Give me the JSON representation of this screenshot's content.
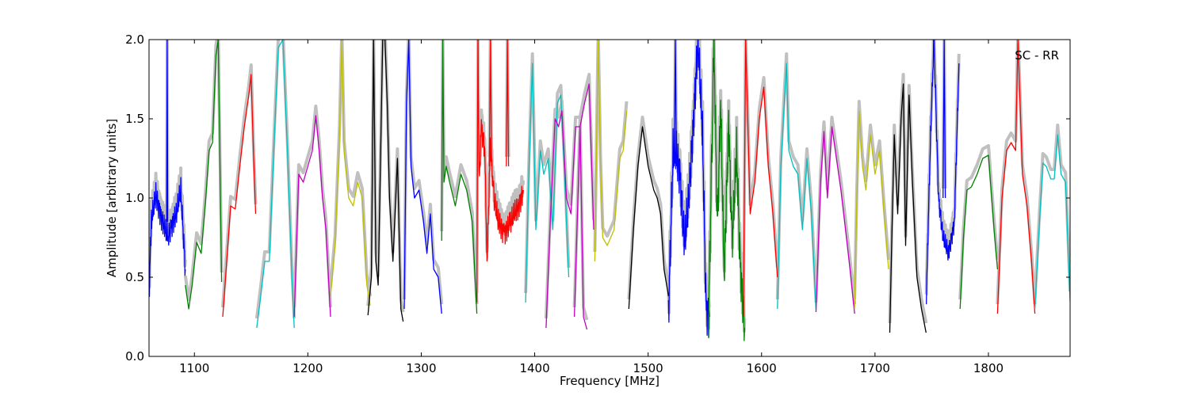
{
  "chart_data": {
    "type": "line",
    "title": "",
    "xlabel": "Frequency [MHz]",
    "ylabel": "Amplitude [arbitrary units]",
    "annotation": "SC - RR",
    "annotation_position": "top-right",
    "xlim": [
      1060,
      1872
    ],
    "ylim": [
      0.0,
      2.0
    ],
    "xticks": [
      1100,
      1200,
      1300,
      1400,
      1500,
      1600,
      1700,
      1800
    ],
    "yticks": [
      0.0,
      0.5,
      1.0,
      1.5,
      2.0
    ],
    "xtick_labels": [
      "1100",
      "1200",
      "1300",
      "1400",
      "1500",
      "1600",
      "1700",
      "1800"
    ],
    "ytick_labels": [
      "0.0",
      "0.5",
      "1.0",
      "1.5",
      "2.0"
    ],
    "grid": false,
    "background_color": "#c0c0c0",
    "colors": {
      "b": "#0000ff",
      "g": "#008000",
      "r": "#ff0000",
      "c": "#00bfbf",
      "m": "#bf00bf",
      "y": "#bfbf00",
      "k": "#000000"
    },
    "segments": [
      {
        "color": "b",
        "x": [
          1060,
          1062,
          1066,
          1070,
          1074,
          1077,
          1080,
          1084,
          1088,
          1092
        ],
        "y": [
          0.38,
          0.85,
          1.02,
          0.9,
          0.8,
          0.75,
          0.83,
          0.9,
          1.05,
          0.55
        ],
        "noise": 0.08
      },
      {
        "color": "b",
        "x": [
          1075.5,
          1076,
          1076.5
        ],
        "y": [
          0.85,
          2.0,
          0.85
        ]
      },
      {
        "color": "g",
        "x": [
          1092,
          1095,
          1098,
          1102,
          1106,
          1110,
          1113,
          1116,
          1119,
          1121,
          1124
        ],
        "y": [
          0.45,
          0.3,
          0.45,
          0.72,
          0.65,
          1.0,
          1.3,
          1.35,
          1.9,
          2.0,
          0.47
        ]
      },
      {
        "color": "r",
        "x": [
          1125,
          1128,
          1132,
          1136,
          1140,
          1144,
          1148,
          1150,
          1152,
          1154
        ],
        "y": [
          0.25,
          0.55,
          0.95,
          0.93,
          1.2,
          1.45,
          1.65,
          1.78,
          1.3,
          0.9
        ]
      },
      {
        "color": "c",
        "x": [
          1155,
          1158,
          1162,
          1166,
          1170,
          1174,
          1178,
          1182,
          1186,
          1188
        ],
        "y": [
          0.18,
          0.35,
          0.6,
          0.6,
          1.3,
          1.95,
          2.0,
          1.3,
          0.5,
          0.18
        ]
      },
      {
        "color": "m",
        "x": [
          1188,
          1192,
          1196,
          1200,
          1204,
          1207,
          1210,
          1213,
          1216,
          1220
        ],
        "y": [
          0.25,
          1.15,
          1.1,
          1.2,
          1.3,
          1.52,
          1.3,
          1.0,
          0.8,
          0.25
        ]
      },
      {
        "color": "y",
        "x": [
          1220,
          1224,
          1228,
          1230,
          1232,
          1236,
          1240,
          1244,
          1248,
          1252,
          1255
        ],
        "y": [
          0.38,
          0.7,
          1.4,
          2.0,
          1.3,
          1.0,
          0.95,
          1.1,
          1.0,
          0.45,
          0.32
        ]
      },
      {
        "color": "k",
        "x": [
          1253,
          1256,
          1258,
          1260,
          1262,
          1264,
          1266,
          1268,
          1270,
          1272,
          1275,
          1279,
          1282,
          1284
        ],
        "y": [
          0.26,
          0.5,
          2.0,
          0.6,
          0.45,
          1.2,
          2.0,
          2.0,
          1.6,
          1.0,
          0.6,
          1.25,
          0.3,
          0.22
        ]
      },
      {
        "color": "b",
        "x": [
          1285,
          1287,
          1289,
          1291,
          1294,
          1298,
          1302,
          1305,
          1308,
          1311,
          1315,
          1318
        ],
        "y": [
          0.3,
          1.6,
          2.0,
          1.2,
          1.0,
          1.05,
          0.85,
          0.65,
          0.9,
          0.55,
          0.5,
          0.27
        ]
      },
      {
        "color": "g",
        "x": [
          1318,
          1319,
          1320,
          1322,
          1325,
          1330,
          1335,
          1340,
          1345,
          1349
        ],
        "y": [
          0.73,
          2.0,
          1.1,
          1.2,
          1.1,
          0.95,
          1.15,
          1.05,
          0.85,
          0.27
        ]
      },
      {
        "color": "r",
        "x": [
          1349,
          1350,
          1351,
          1353,
          1356,
          1358,
          1361,
          1364,
          1368,
          1373,
          1378,
          1382,
          1386,
          1390
        ],
        "y": [
          0.3,
          2.0,
          1.1,
          1.45,
          1.3,
          0.6,
          1.35,
          1.0,
          0.85,
          0.78,
          0.83,
          0.9,
          0.95,
          1.05
        ],
        "noise": 0.08
      },
      {
        "color": "r",
        "x": [
          1360,
          1361,
          1362
        ],
        "y": [
          1.2,
          2.0,
          1.2
        ]
      },
      {
        "color": "r",
        "x": [
          1375,
          1376,
          1377
        ],
        "y": [
          1.2,
          2.0,
          1.2
        ]
      },
      {
        "color": "c",
        "x": [
          1392,
          1395,
          1398,
          1401,
          1405,
          1408,
          1412,
          1416,
          1420,
          1423,
          1426,
          1430
        ],
        "y": [
          0.34,
          1.2,
          1.85,
          0.8,
          1.3,
          1.15,
          1.25,
          0.8,
          1.6,
          1.65,
          1.2,
          0.5
        ]
      },
      {
        "color": "m",
        "x": [
          1410,
          1414,
          1418,
          1421,
          1424,
          1428,
          1432,
          1436,
          1440,
          1443,
          1446
        ],
        "y": [
          0.18,
          0.9,
          1.5,
          1.45,
          1.55,
          1.0,
          0.9,
          1.45,
          1.45,
          0.25,
          0.17
        ]
      },
      {
        "color": "m",
        "x": [
          1435,
          1440,
          1444,
          1448,
          1452
        ],
        "y": [
          0.25,
          1.45,
          1.6,
          1.72,
          0.8
        ]
      },
      {
        "color": "y",
        "x": [
          1453,
          1456,
          1458,
          1460,
          1464,
          1470,
          1475,
          1478,
          1481
        ],
        "y": [
          0.6,
          2.0,
          1.2,
          0.75,
          0.7,
          0.8,
          1.25,
          1.3,
          1.55
        ]
      },
      {
        "color": "k",
        "x": [
          1483,
          1487,
          1491,
          1495,
          1500,
          1505,
          1508,
          1511,
          1514,
          1518
        ],
        "y": [
          0.3,
          0.8,
          1.2,
          1.45,
          1.2,
          1.05,
          1.0,
          0.9,
          0.55,
          0.38
        ]
      },
      {
        "color": "b",
        "x": [
          1518,
          1522,
          1525,
          1528,
          1532,
          1536,
          1540,
          1544,
          1548,
          1551,
          1554
        ],
        "y": [
          0.28,
          1.3,
          1.28,
          1.15,
          0.7,
          1.0,
          1.5,
          2.0,
          1.4,
          0.3,
          0.25
        ],
        "noise": 0.15
      },
      {
        "color": "b",
        "x": [
          1523,
          1524,
          1525
        ],
        "y": [
          1.2,
          2.0,
          1.2
        ]
      },
      {
        "color": "g",
        "x": [
          1553,
          1556,
          1558,
          1561,
          1564,
          1567,
          1571,
          1574,
          1578,
          1581,
          1585
        ],
        "y": [
          0.15,
          1.2,
          2.0,
          0.8,
          1.6,
          0.5,
          1.5,
          0.7,
          1.3,
          0.6,
          0.18
        ],
        "noise": 0.15
      },
      {
        "color": "r",
        "x": [
          1584,
          1586,
          1590,
          1594,
          1598,
          1602,
          1606,
          1610,
          1614
        ],
        "y": [
          0.25,
          2.0,
          0.9,
          1.1,
          1.5,
          1.7,
          1.2,
          0.9,
          0.5
        ]
      },
      {
        "color": "c",
        "x": [
          1614,
          1617,
          1620,
          1622,
          1624,
          1628,
          1632,
          1636,
          1640,
          1644,
          1648
        ],
        "y": [
          0.3,
          1.2,
          1.6,
          1.85,
          1.3,
          1.2,
          1.15,
          0.8,
          1.25,
          0.9,
          0.3
        ]
      },
      {
        "color": "m",
        "x": [
          1648,
          1652,
          1655,
          1658,
          1662,
          1666,
          1670,
          1674,
          1678,
          1682
        ],
        "y": [
          0.28,
          1.1,
          1.42,
          1.0,
          1.45,
          1.25,
          1.05,
          0.8,
          0.55,
          0.27
        ]
      },
      {
        "color": "y",
        "x": [
          1682,
          1684,
          1686,
          1689,
          1692,
          1696,
          1700,
          1704,
          1708,
          1712
        ],
        "y": [
          0.3,
          1.0,
          1.55,
          1.2,
          1.05,
          1.4,
          1.15,
          1.3,
          0.9,
          0.55
        ]
      },
      {
        "color": "k",
        "x": [
          1713,
          1715,
          1717,
          1720,
          1723,
          1725,
          1727,
          1730,
          1733,
          1737,
          1741,
          1745
        ],
        "y": [
          0.15,
          0.8,
          1.4,
          0.9,
          1.5,
          1.72,
          0.7,
          1.65,
          1.1,
          0.5,
          0.3,
          0.15
        ]
      },
      {
        "color": "b",
        "x": [
          1745,
          1749,
          1752,
          1756,
          1760,
          1765,
          1770,
          1774
        ],
        "y": [
          0.3,
          1.4,
          2.0,
          1.0,
          0.75,
          0.65,
          0.85,
          1.85
        ],
        "noise": 0.06
      },
      {
        "color": "b",
        "x": [
          1760,
          1761,
          1762
        ],
        "y": [
          1.0,
          2.0,
          1.0
        ]
      },
      {
        "color": "g",
        "x": [
          1775,
          1778,
          1781,
          1785,
          1790,
          1795,
          1800,
          1805,
          1808
        ],
        "y": [
          0.3,
          0.75,
          1.05,
          1.07,
          1.15,
          1.25,
          1.27,
          0.8,
          0.55
        ]
      },
      {
        "color": "r",
        "x": [
          1808,
          1812,
          1816,
          1820,
          1824,
          1826,
          1830,
          1834,
          1838,
          1841
        ],
        "y": [
          0.27,
          1.0,
          1.3,
          1.35,
          1.3,
          2.0,
          1.15,
          0.95,
          0.6,
          0.27
        ]
      },
      {
        "color": "c",
        "x": [
          1841,
          1845,
          1848,
          1851,
          1855,
          1858,
          1861,
          1864,
          1868,
          1872
        ],
        "y": [
          0.3,
          0.85,
          1.22,
          1.2,
          1.12,
          1.12,
          1.4,
          1.15,
          1.1,
          0.35
        ]
      }
    ]
  }
}
